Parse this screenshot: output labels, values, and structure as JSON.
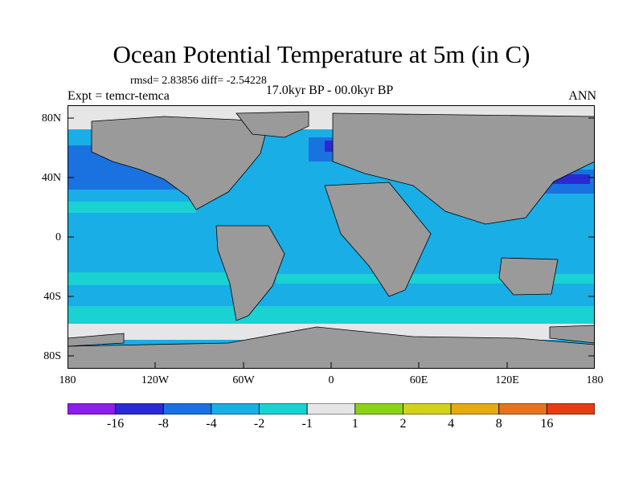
{
  "title": "Ocean Potential Temperature at 5m (in C)",
  "stats_line": "rmsd= 2.83856 diff= -2.54228",
  "period_line": "17.0kyr BP - 00.0kyr BP",
  "experiment_line": "Expt = temcr-temca",
  "season": "ANN",
  "latitude_labels": [
    "80N",
    "40N",
    "0",
    "40S",
    "80S"
  ],
  "longitude_labels": [
    "180",
    "120W",
    "60W",
    "0",
    "60E",
    "120E",
    "180"
  ],
  "colorbar": {
    "colors": [
      "#8c1ee8",
      "#2a2ad4",
      "#1a72e0",
      "#19aee6",
      "#1ad2d2",
      "#e6e6e6",
      "#8cd219",
      "#d2d21e",
      "#e6aa14",
      "#e6731e",
      "#e63c14"
    ],
    "labels": [
      "-16",
      "-8",
      "-4",
      "-2",
      "-1",
      "1",
      "2",
      "4",
      "8",
      "16"
    ]
  },
  "colors": {
    "land": "#9a9a9a",
    "ocean_main": "#19aee6",
    "ocean_cool": "#1a72e0",
    "ocean_light": "#1ad2d2",
    "near_zero": "#e6e6e6",
    "strong_cool": "#2a2ad4"
  }
}
